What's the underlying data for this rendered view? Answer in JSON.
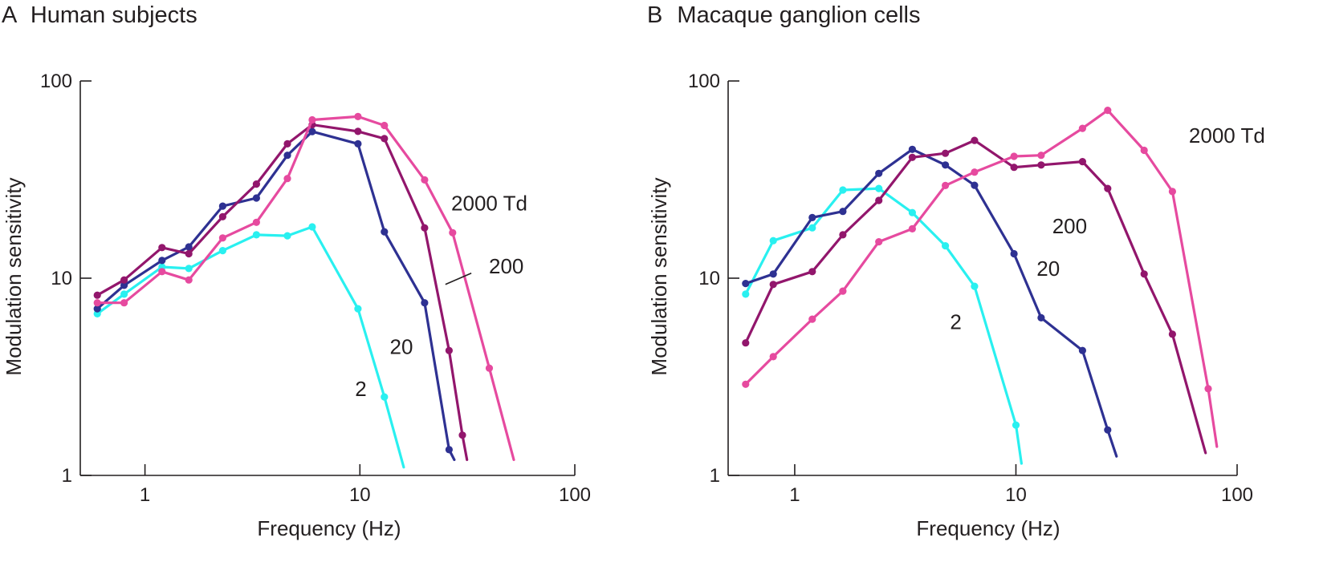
{
  "chart_data": [
    {
      "type": "line",
      "panel_letter": "A",
      "title": "Human subjects",
      "xlabel": "Frequency (Hz)",
      "ylabel": "Modulation sensitivity",
      "x_scale": "log",
      "y_scale": "log",
      "xlim": [
        0.5,
        100
      ],
      "ylim": [
        1,
        100
      ],
      "x_ticks": [
        {
          "value": 1,
          "label": "1"
        },
        {
          "value": 10,
          "label": "10"
        },
        {
          "value": 100,
          "label": "100"
        }
      ],
      "y_ticks": [
        {
          "value": 1,
          "label": "1"
        },
        {
          "value": 10,
          "label": "10"
        },
        {
          "value": 100,
          "label": "100"
        }
      ],
      "grid": false,
      "series": [
        {
          "name": "2",
          "color": "#29f0f0",
          "x": [
            0.6,
            0.8,
            1.2,
            1.6,
            2.3,
            3.3,
            4.6,
            6.0,
            9.8,
            13.0,
            16.0
          ],
          "y": [
            6.6,
            8.3,
            11.4,
            11.2,
            13.8,
            16.6,
            16.4,
            18.2,
            7.0,
            2.5,
            1.1
          ],
          "markers": [
            true,
            true,
            true,
            true,
            true,
            true,
            true,
            true,
            true,
            true,
            false
          ]
        },
        {
          "name": "20",
          "color": "#2e3192",
          "x": [
            0.6,
            0.8,
            1.2,
            1.6,
            2.3,
            3.3,
            4.6,
            6.0,
            9.8,
            13.0,
            20.0,
            26.0,
            27.5
          ],
          "y": [
            7.0,
            9.2,
            12.3,
            14.4,
            23.2,
            25.5,
            42.0,
            55.4,
            48.0,
            17.2,
            7.5,
            1.35,
            1.2
          ],
          "markers": [
            true,
            true,
            true,
            true,
            true,
            true,
            true,
            true,
            true,
            true,
            true,
            true,
            false
          ]
        },
        {
          "name": "200",
          "color": "#92166c",
          "x": [
            0.6,
            0.8,
            1.2,
            1.6,
            2.3,
            3.3,
            4.6,
            6.0,
            9.8,
            13.0,
            20.0,
            26.0,
            30.0,
            31.5
          ],
          "y": [
            8.2,
            9.8,
            14.3,
            13.3,
            20.5,
            30.0,
            48.0,
            60.0,
            55.5,
            51.0,
            18.0,
            4.3,
            1.6,
            1.2
          ],
          "markers": [
            true,
            true,
            true,
            true,
            true,
            true,
            true,
            true,
            true,
            true,
            true,
            true,
            true,
            false
          ]
        },
        {
          "name": "2000 Td",
          "color": "#e64a9f",
          "x": [
            0.6,
            0.8,
            1.2,
            1.6,
            2.3,
            3.3,
            4.6,
            6.0,
            9.8,
            13.0,
            20.0,
            27.0,
            40.0,
            52.0
          ],
          "y": [
            7.5,
            7.5,
            10.8,
            9.8,
            16.0,
            19.2,
            32.0,
            63.5,
            66.0,
            59.5,
            31.5,
            17.0,
            3.5,
            1.2
          ],
          "markers": [
            true,
            true,
            true,
            true,
            true,
            true,
            true,
            true,
            true,
            true,
            true,
            true,
            true,
            false
          ]
        }
      ],
      "annotations": [
        {
          "text": "2000 Td",
          "series": "2000 Td",
          "x": 40,
          "y": 24,
          "anchor": "middle"
        },
        {
          "text": "200",
          "series": "200",
          "x": 48,
          "y": 11.5,
          "anchor": "middle",
          "leader": {
            "x1": 33,
            "y1": 10.6,
            "x2": 25,
            "y2": 9.3
          }
        },
        {
          "text": "20",
          "series": "20",
          "x": 15.6,
          "y": 4.5,
          "anchor": "middle"
        },
        {
          "text": "2",
          "series": "2",
          "x": 10.1,
          "y": 2.75,
          "anchor": "middle"
        }
      ]
    },
    {
      "type": "line",
      "panel_letter": "B",
      "title": "Macaque ganglion cells",
      "xlabel": "Frequency (Hz)",
      "ylabel": "Modulation sensitivity",
      "x_scale": "log",
      "y_scale": "log",
      "xlim": [
        0.5,
        100
      ],
      "ylim": [
        1,
        100
      ],
      "x_ticks": [
        {
          "value": 1,
          "label": "1"
        },
        {
          "value": 10,
          "label": "10"
        },
        {
          "value": 100,
          "label": "100"
        }
      ],
      "y_ticks": [
        {
          "value": 1,
          "label": "1"
        },
        {
          "value": 10,
          "label": "10"
        },
        {
          "value": 100,
          "label": "100"
        }
      ],
      "grid": false,
      "series": [
        {
          "name": "2",
          "color": "#29f0f0",
          "x": [
            0.6,
            0.8,
            1.2,
            1.65,
            2.4,
            3.4,
            4.8,
            6.5,
            10.0,
            10.6
          ],
          "y": [
            8.3,
            15.5,
            18.0,
            28.0,
            28.5,
            21.5,
            14.6,
            9.1,
            1.8,
            1.15
          ],
          "markers": [
            true,
            true,
            true,
            true,
            true,
            true,
            true,
            true,
            true,
            false
          ]
        },
        {
          "name": "20",
          "color": "#2e3192",
          "x": [
            0.6,
            0.8,
            1.2,
            1.65,
            2.4,
            3.4,
            4.8,
            6.5,
            9.8,
            13.0,
            20.0,
            26.0,
            28.5
          ],
          "y": [
            9.4,
            10.5,
            20.3,
            21.8,
            34.0,
            45.0,
            37.5,
            29.6,
            13.3,
            6.3,
            4.3,
            1.7,
            1.25
          ],
          "markers": [
            true,
            true,
            true,
            true,
            true,
            true,
            true,
            true,
            true,
            true,
            true,
            true,
            false
          ]
        },
        {
          "name": "200",
          "color": "#92166c",
          "x": [
            0.6,
            0.8,
            1.2,
            1.65,
            2.4,
            3.4,
            4.8,
            6.5,
            9.8,
            13.0,
            20.0,
            26.0,
            38.0,
            51.0,
            72.0
          ],
          "y": [
            4.7,
            9.3,
            10.8,
            16.6,
            24.8,
            41.0,
            43.0,
            50.0,
            36.5,
            37.5,
            39.0,
            28.5,
            10.5,
            5.2,
            1.3
          ],
          "markers": [
            true,
            true,
            true,
            true,
            true,
            true,
            true,
            true,
            true,
            true,
            true,
            true,
            true,
            true,
            false
          ]
        },
        {
          "name": "2000 Td",
          "color": "#e64a9f",
          "x": [
            0.6,
            0.8,
            1.2,
            1.65,
            2.4,
            3.4,
            4.8,
            6.5,
            9.8,
            13.0,
            20.0,
            26.0,
            38.0,
            51.0,
            74.0,
            81.0
          ],
          "y": [
            2.9,
            4.0,
            6.2,
            8.6,
            15.3,
            17.8,
            29.5,
            34.5,
            41.5,
            42.0,
            57.5,
            71.0,
            44.5,
            27.5,
            2.75,
            1.4
          ],
          "markers": [
            true,
            true,
            true,
            true,
            true,
            true,
            true,
            true,
            true,
            true,
            true,
            true,
            true,
            true,
            true,
            false
          ]
        }
      ],
      "annotations": [
        {
          "text": "2000 Td",
          "series": "2000 Td",
          "x": 90,
          "y": 53,
          "anchor": "middle"
        },
        {
          "text": "200",
          "series": "200",
          "x": 17.5,
          "y": 18.4,
          "anchor": "middle"
        },
        {
          "text": "20",
          "series": "20",
          "x": 14.0,
          "y": 11.2,
          "anchor": "middle"
        },
        {
          "text": "2",
          "series": "2",
          "x": 5.35,
          "y": 6.0,
          "anchor": "middle"
        }
      ]
    }
  ]
}
